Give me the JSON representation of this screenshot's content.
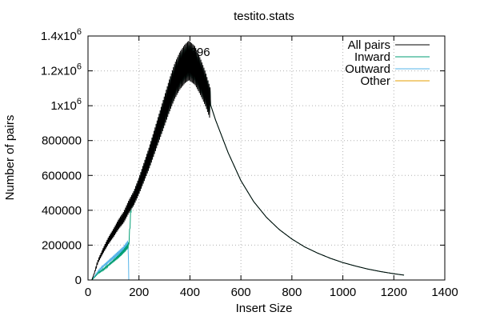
{
  "chart_data": {
    "type": "line",
    "title": "testito.stats",
    "xlabel": "Insert Size",
    "ylabel": "Number of pairs",
    "xlim": [
      0,
      1400
    ],
    "ylim": [
      0,
      1400000
    ],
    "x_ticks": [
      {
        "value": 0,
        "label": "0"
      },
      {
        "value": 200,
        "label": "200"
      },
      {
        "value": 400,
        "label": "400"
      },
      {
        "value": 600,
        "label": "600"
      },
      {
        "value": 800,
        "label": "800"
      },
      {
        "value": 1000,
        "label": "1000"
      },
      {
        "value": 1200,
        "label": "1200"
      },
      {
        "value": 1400,
        "label": "1400"
      }
    ],
    "y_ticks": [
      {
        "value": 0,
        "label": "0"
      },
      {
        "value": 200000,
        "label": "200000"
      },
      {
        "value": 400000,
        "label": "400000"
      },
      {
        "value": 600000,
        "label": "600000"
      },
      {
        "value": 800000,
        "label": "800000"
      },
      {
        "value": 1000000,
        "label": "1x10",
        "sup": "6"
      },
      {
        "value": 1200000,
        "label": "1.2x10",
        "sup": "6"
      },
      {
        "value": 1400000,
        "label": "1.4x10",
        "sup": "6"
      }
    ],
    "grid": "dotted",
    "legend_position": "top-right",
    "annotation": {
      "text": "396",
      "x": 396,
      "y": 1275000
    },
    "series": [
      {
        "name": "All pairs",
        "color": "#000000",
        "points": [
          [
            15,
            0
          ],
          [
            25,
            40000
          ],
          [
            40,
            110000
          ],
          [
            60,
            170000
          ],
          [
            80,
            225000
          ],
          [
            100,
            270000
          ],
          [
            120,
            320000
          ],
          [
            140,
            360000
          ],
          [
            160,
            420000
          ],
          [
            180,
            470000
          ],
          [
            200,
            540000
          ],
          [
            220,
            620000
          ],
          [
            240,
            700000
          ],
          [
            260,
            790000
          ],
          [
            280,
            880000
          ],
          [
            300,
            970000
          ],
          [
            320,
            1060000
          ],
          [
            340,
            1140000
          ],
          [
            360,
            1200000
          ],
          [
            380,
            1240000
          ],
          [
            396,
            1260000
          ],
          [
            420,
            1230000
          ],
          [
            440,
            1170000
          ],
          [
            460,
            1100000
          ],
          [
            480,
            1010000
          ],
          [
            500,
            920000
          ],
          [
            550,
            730000
          ],
          [
            600,
            570000
          ],
          [
            650,
            450000
          ],
          [
            700,
            360000
          ],
          [
            750,
            290000
          ],
          [
            800,
            235000
          ],
          [
            850,
            190000
          ],
          [
            900,
            155000
          ],
          [
            950,
            125000
          ],
          [
            1000,
            100000
          ],
          [
            1050,
            80000
          ],
          [
            1100,
            62000
          ],
          [
            1150,
            48000
          ],
          [
            1200,
            36000
          ],
          [
            1240,
            28000
          ]
        ],
        "jitter_pct": 0.09,
        "jitter_range": [
          20,
          480
        ]
      },
      {
        "name": "Inward",
        "color": "#009e73",
        "points": [
          [
            15,
            0
          ],
          [
            25,
            15000
          ],
          [
            40,
            40000
          ],
          [
            60,
            60000
          ],
          [
            80,
            85000
          ],
          [
            100,
            110000
          ],
          [
            120,
            135000
          ],
          [
            140,
            165000
          ],
          [
            160,
            200000
          ],
          [
            170,
            440000
          ],
          [
            200,
            540000
          ],
          [
            220,
            620000
          ],
          [
            240,
            700000
          ],
          [
            260,
            790000
          ],
          [
            280,
            880000
          ],
          [
            300,
            970000
          ],
          [
            320,
            1060000
          ],
          [
            340,
            1140000
          ],
          [
            360,
            1200000
          ],
          [
            380,
            1240000
          ],
          [
            396,
            1260000
          ],
          [
            420,
            1230000
          ],
          [
            440,
            1170000
          ],
          [
            460,
            1100000
          ],
          [
            480,
            1010000
          ],
          [
            500,
            920000
          ],
          [
            550,
            730000
          ],
          [
            600,
            570000
          ],
          [
            650,
            450000
          ],
          [
            700,
            360000
          ],
          [
            750,
            290000
          ],
          [
            800,
            235000
          ],
          [
            850,
            190000
          ],
          [
            900,
            155000
          ],
          [
            950,
            125000
          ],
          [
            1000,
            100000
          ],
          [
            1050,
            80000
          ],
          [
            1100,
            62000
          ],
          [
            1150,
            48000
          ],
          [
            1200,
            36000
          ],
          [
            1240,
            28000
          ]
        ],
        "jitter_pct": 0.07,
        "jitter_range": [
          20,
          480
        ]
      },
      {
        "name": "Outward",
        "color": "#56b4e9",
        "points": [
          [
            15,
            0
          ],
          [
            25,
            20000
          ],
          [
            40,
            50000
          ],
          [
            60,
            80000
          ],
          [
            80,
            105000
          ],
          [
            100,
            130000
          ],
          [
            120,
            155000
          ],
          [
            140,
            180000
          ],
          [
            158,
            215000
          ],
          [
            160,
            0
          ]
        ],
        "jitter_pct": 0.08,
        "jitter_range": [
          20,
          158
        ]
      },
      {
        "name": "Other",
        "color": "#e69f00",
        "points": []
      }
    ]
  }
}
